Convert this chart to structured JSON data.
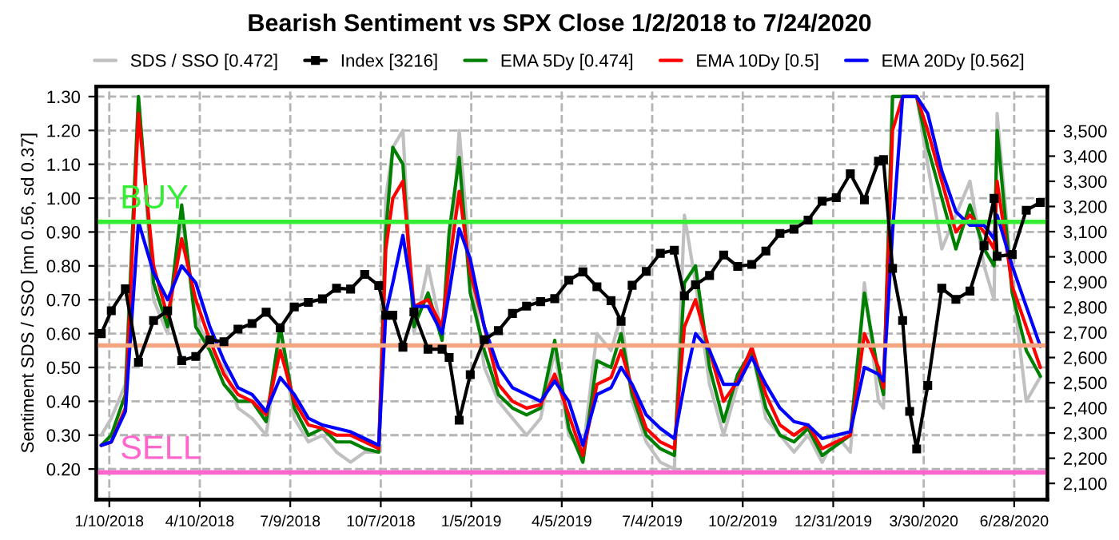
{
  "chart_data": {
    "type": "line",
    "title": "Bearish Sentiment vs SPX Close 1/2/2018 to 7/24/2020",
    "ylabel": "Sentiment SDS / SSO [mn 0.56, sd 0.37]",
    "x": [
      "2018-01-02",
      "2018-01-12",
      "2018-01-26",
      "2018-02-08",
      "2018-02-23",
      "2018-03-09",
      "2018-03-23",
      "2018-04-06",
      "2018-04-20",
      "2018-05-04",
      "2018-05-18",
      "2018-06-01",
      "2018-06-15",
      "2018-06-29",
      "2018-07-13",
      "2018-07-27",
      "2018-08-10",
      "2018-08-24",
      "2018-09-07",
      "2018-09-21",
      "2018-10-05",
      "2018-10-12",
      "2018-10-19",
      "2018-10-29",
      "2018-11-09",
      "2018-11-23",
      "2018-12-07",
      "2018-12-14",
      "2018-12-24",
      "2019-01-04",
      "2019-01-18",
      "2019-02-01",
      "2019-02-15",
      "2019-03-01",
      "2019-03-15",
      "2019-03-29",
      "2019-04-12",
      "2019-04-26",
      "2019-05-10",
      "2019-05-24",
      "2019-06-03",
      "2019-06-14",
      "2019-06-28",
      "2019-07-12",
      "2019-07-26",
      "2019-08-05",
      "2019-08-16",
      "2019-08-30",
      "2019-09-13",
      "2019-09-27",
      "2019-10-11",
      "2019-10-25",
      "2019-11-08",
      "2019-11-22",
      "2019-12-06",
      "2019-12-20",
      "2020-01-03",
      "2020-01-17",
      "2020-01-31",
      "2020-02-14",
      "2020-02-19",
      "2020-02-28",
      "2020-03-09",
      "2020-03-16",
      "2020-03-23",
      "2020-04-03",
      "2020-04-17",
      "2020-05-01",
      "2020-05-15",
      "2020-05-29",
      "2020-06-08",
      "2020-06-11",
      "2020-06-26",
      "2020-07-10",
      "2020-07-24"
    ],
    "series": [
      {
        "name": "SDS / SSO [0.472]",
        "color": "#c0c0c0",
        "values": [
          0.3,
          0.35,
          0.45,
          1.3,
          0.7,
          0.6,
          0.95,
          0.65,
          0.55,
          0.5,
          0.38,
          0.35,
          0.3,
          0.6,
          0.35,
          0.28,
          0.3,
          0.25,
          0.22,
          0.25,
          0.25,
          1.0,
          1.15,
          1.2,
          0.6,
          0.8,
          0.6,
          0.75,
          1.2,
          0.8,
          0.5,
          0.4,
          0.35,
          0.3,
          0.35,
          0.55,
          0.3,
          0.25,
          0.6,
          0.55,
          0.65,
          0.4,
          0.28,
          0.22,
          0.2,
          0.95,
          0.75,
          0.45,
          0.3,
          0.45,
          0.55,
          0.35,
          0.3,
          0.25,
          0.3,
          0.22,
          0.3,
          0.25,
          0.75,
          0.4,
          0.38,
          1.3,
          1.3,
          1.3,
          1.3,
          1.1,
          0.85,
          0.95,
          1.05,
          0.8,
          0.7,
          1.25,
          0.75,
          0.4,
          0.472
        ]
      },
      {
        "name": "Index [3216]",
        "color": "#000000",
        "axis": "y2",
        "marker": "square",
        "values": [
          2695,
          2786,
          2873,
          2581,
          2747,
          2786,
          2588,
          2604,
          2670,
          2663,
          2713,
          2735,
          2780,
          2718,
          2801,
          2819,
          2833,
          2875,
          2872,
          2930,
          2886,
          2768,
          2768,
          2641,
          2781,
          2633,
          2633,
          2600,
          2351,
          2532,
          2671,
          2707,
          2775,
          2804,
          2822,
          2834,
          2907,
          2940,
          2881,
          2826,
          2744,
          2887,
          2942,
          3014,
          3026,
          2845,
          2889,
          2926,
          3007,
          2962,
          2970,
          3023,
          3093,
          3110,
          3146,
          3221,
          3235,
          3330,
          3226,
          3380,
          3386,
          2954,
          2747,
          2386,
          2237,
          2489,
          2875,
          2831,
          2864,
          3044,
          3232,
          3002,
          3009,
          3185,
          3216
        ]
      },
      {
        "name": "EMA 5Dy [0.474]",
        "color": "#008000",
        "values": [
          0.27,
          0.3,
          0.42,
          1.3,
          0.75,
          0.62,
          0.98,
          0.62,
          0.55,
          0.45,
          0.4,
          0.4,
          0.34,
          0.62,
          0.38,
          0.3,
          0.32,
          0.28,
          0.28,
          0.26,
          0.25,
          0.9,
          1.15,
          1.1,
          0.62,
          0.72,
          0.58,
          0.9,
          1.12,
          0.72,
          0.55,
          0.42,
          0.38,
          0.36,
          0.38,
          0.58,
          0.32,
          0.22,
          0.52,
          0.5,
          0.6,
          0.42,
          0.3,
          0.26,
          0.24,
          0.75,
          0.8,
          0.5,
          0.34,
          0.48,
          0.55,
          0.38,
          0.3,
          0.28,
          0.32,
          0.24,
          0.27,
          0.3,
          0.72,
          0.48,
          0.42,
          1.3,
          1.3,
          1.3,
          1.3,
          1.15,
          1.0,
          0.85,
          0.98,
          0.85,
          0.8,
          1.2,
          0.72,
          0.55,
          0.474
        ]
      },
      {
        "name": "EMA 10Dy [0.5]",
        "color": "#ff0000",
        "values": [
          0.27,
          0.28,
          0.38,
          1.25,
          0.8,
          0.65,
          0.88,
          0.7,
          0.58,
          0.48,
          0.42,
          0.4,
          0.36,
          0.55,
          0.4,
          0.33,
          0.32,
          0.3,
          0.3,
          0.28,
          0.26,
          0.85,
          1.0,
          1.05,
          0.68,
          0.7,
          0.62,
          0.8,
          1.02,
          0.78,
          0.62,
          0.45,
          0.4,
          0.38,
          0.39,
          0.48,
          0.36,
          0.24,
          0.45,
          0.47,
          0.55,
          0.44,
          0.32,
          0.28,
          0.26,
          0.62,
          0.7,
          0.55,
          0.4,
          0.46,
          0.56,
          0.42,
          0.33,
          0.3,
          0.33,
          0.26,
          0.28,
          0.3,
          0.6,
          0.5,
          0.44,
          1.2,
          1.3,
          1.3,
          1.3,
          1.2,
          1.05,
          0.9,
          0.95,
          0.9,
          0.85,
          1.05,
          0.74,
          0.62,
          0.5
        ]
      },
      {
        "name": "EMA 20Dy [0.562]",
        "color": "#0000ff",
        "values": [
          0.27,
          0.28,
          0.37,
          0.93,
          0.78,
          0.7,
          0.8,
          0.75,
          0.62,
          0.52,
          0.44,
          0.42,
          0.37,
          0.47,
          0.42,
          0.35,
          0.33,
          0.32,
          0.31,
          0.29,
          0.27,
          0.66,
          0.75,
          0.89,
          0.68,
          0.68,
          0.6,
          0.72,
          0.91,
          0.82,
          0.62,
          0.5,
          0.44,
          0.42,
          0.4,
          0.46,
          0.4,
          0.27,
          0.42,
          0.44,
          0.5,
          0.45,
          0.36,
          0.32,
          0.29,
          0.45,
          0.6,
          0.55,
          0.45,
          0.45,
          0.53,
          0.45,
          0.38,
          0.34,
          0.33,
          0.29,
          0.3,
          0.31,
          0.5,
          0.48,
          0.46,
          0.9,
          1.3,
          1.3,
          1.3,
          1.25,
          1.08,
          0.96,
          0.92,
          0.92,
          0.88,
          0.95,
          0.8,
          0.68,
          0.562
        ]
      }
    ],
    "xlim": [
      "2017-12-28",
      "2020-07-31"
    ],
    "xticks": [
      {
        "value": "2018-01-10",
        "label": "1/10/2018"
      },
      {
        "value": "2018-04-10",
        "label": "4/10/2018"
      },
      {
        "value": "2018-07-09",
        "label": "7/9/2018"
      },
      {
        "value": "2018-10-07",
        "label": "10/7/2018"
      },
      {
        "value": "2019-01-05",
        "label": "1/5/2019"
      },
      {
        "value": "2019-04-05",
        "label": "4/5/2019"
      },
      {
        "value": "2019-07-04",
        "label": "7/4/2019"
      },
      {
        "value": "2019-10-02",
        "label": "10/2/2019"
      },
      {
        "value": "2019-12-31",
        "label": "12/31/2019"
      },
      {
        "value": "2020-03-30",
        "label": "3/30/2020"
      },
      {
        "value": "2020-06-28",
        "label": "6/28/2020"
      }
    ],
    "ylim": [
      0.11,
      1.33
    ],
    "yticks": [
      {
        "value": 0.2,
        "label": "0.20"
      },
      {
        "value": 0.3,
        "label": "0.30"
      },
      {
        "value": 0.4,
        "label": "0.40"
      },
      {
        "value": 0.5,
        "label": "0.50"
      },
      {
        "value": 0.6,
        "label": "0.60"
      },
      {
        "value": 0.7,
        "label": "0.70"
      },
      {
        "value": 0.8,
        "label": "0.80"
      },
      {
        "value": 0.9,
        "label": "0.90"
      },
      {
        "value": 1.0,
        "label": "1.00"
      },
      {
        "value": 1.1,
        "label": "1.10"
      },
      {
        "value": 1.2,
        "label": "1.20"
      },
      {
        "value": 1.3,
        "label": "1.30"
      }
    ],
    "y2lim": [
      2036,
      3677
    ],
    "y2ticks": [
      {
        "value": 2100,
        "label": "2,100"
      },
      {
        "value": 2200,
        "label": "2,200"
      },
      {
        "value": 2300,
        "label": "2,300"
      },
      {
        "value": 2400,
        "label": "2,400"
      },
      {
        "value": 2500,
        "label": "2,500"
      },
      {
        "value": 2600,
        "label": "2,600"
      },
      {
        "value": 2700,
        "label": "2,700"
      },
      {
        "value": 2800,
        "label": "2,800"
      },
      {
        "value": 2900,
        "label": "2,900"
      },
      {
        "value": 3000,
        "label": "3,000"
      },
      {
        "value": 3100,
        "label": "3,100"
      },
      {
        "value": 3200,
        "label": "3,200"
      },
      {
        "value": 3300,
        "label": "3,300"
      },
      {
        "value": 3400,
        "label": "3,400"
      },
      {
        "value": 3500,
        "label": "3,500"
      }
    ],
    "ref_lines": [
      {
        "axis": "y",
        "value": 0.93,
        "label": "BUY",
        "color": "#33ee33"
      },
      {
        "axis": "y",
        "value": 0.565,
        "color": "#f4a582"
      },
      {
        "axis": "y",
        "value": 0.19,
        "label": "SELL",
        "color": "#ff66cc"
      }
    ],
    "grid": true,
    "legend": "top",
    "line_style": "solid"
  }
}
